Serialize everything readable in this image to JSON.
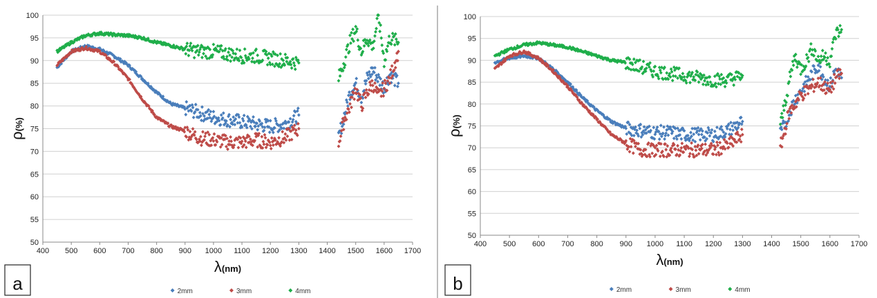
{
  "figure": {
    "colors": {
      "2mm": "#4a7ebb",
      "3mm": "#be4b48",
      "4mm": "#1fae4a"
    }
  },
  "chart_data": [
    {
      "type": "scatter",
      "panel_label": "a",
      "title": "",
      "xlabel": "λ(nm)",
      "ylabel": "ρ(%)",
      "xlim": [
        400,
        1700
      ],
      "ylim": [
        50,
        100
      ],
      "xticks": [
        400,
        500,
        600,
        700,
        800,
        900,
        1000,
        1100,
        1200,
        1300,
        1400,
        1500,
        1600,
        1700
      ],
      "yticks": [
        50,
        55,
        60,
        65,
        70,
        75,
        80,
        85,
        90,
        95,
        100
      ],
      "grid": true,
      "legend": "bottom",
      "series": [
        {
          "name": "2mm",
          "color": "#4a7ebb",
          "segments": [
            {
              "x": [
                450,
                500,
                550,
                600,
                650,
                700,
                750,
                800,
                850,
                900,
                950,
                1000,
                1050,
                1100,
                1150,
                1200,
                1250,
                1300
              ],
              "y": [
                88.5,
                92,
                93.2,
                92.5,
                91,
                89,
                86,
                83,
                80.5,
                79.5,
                78.5,
                77.5,
                77,
                76.5,
                76,
                75.5,
                76,
                78
              ]
            },
            {
              "x": [
                1440,
                1460,
                1480,
                1500,
                1520,
                1540,
                1560,
                1580,
                1600,
                1620,
                1650
              ],
              "y": [
                73,
                78,
                83,
                85,
                82,
                86,
                88,
                86,
                84,
                87,
                85
              ]
            }
          ]
        },
        {
          "name": "3mm",
          "color": "#be4b48",
          "segments": [
            {
              "x": [
                450,
                500,
                550,
                600,
                650,
                700,
                750,
                800,
                850,
                900,
                950,
                1000,
                1050,
                1100,
                1150,
                1200,
                1250,
                1300
              ],
              "y": [
                89,
                92,
                92.8,
                92,
                89.5,
                86,
                81.5,
                77.5,
                75.5,
                74.5,
                73,
                72.5,
                72,
                72,
                72.5,
                72,
                73,
                75
              ]
            },
            {
              "x": [
                1440,
                1460,
                1480,
                1500,
                1520,
                1540,
                1560,
                1580,
                1600,
                1620,
                1650
              ],
              "y": [
                72,
                77,
                80,
                84,
                80,
                83,
                85,
                82,
                84,
                86,
                92
              ]
            }
          ]
        },
        {
          "name": "4mm",
          "color": "#1fae4a",
          "segments": [
            {
              "x": [
                450,
                500,
                550,
                600,
                650,
                700,
                750,
                800,
                850,
                900,
                950,
                1000,
                1050,
                1100,
                1150,
                1200,
                1250,
                1300
              ],
              "y": [
                92,
                94,
                95.5,
                96,
                95.7,
                95.5,
                95,
                94,
                93.3,
                92.5,
                92,
                92,
                91.5,
                91,
                91,
                90.5,
                90,
                89.5
              ]
            },
            {
              "x": [
                1440,
                1460,
                1480,
                1500,
                1520,
                1540,
                1560,
                1580,
                1600,
                1620,
                1650
              ],
              "y": [
                86,
                90,
                94,
                97,
                92,
                95,
                93,
                100,
                90,
                95,
                94
              ]
            }
          ]
        }
      ]
    },
    {
      "type": "scatter",
      "panel_label": "b",
      "title": "",
      "xlabel": "λ(nm)",
      "ylabel": "ρ(%)",
      "xlim": [
        400,
        1700
      ],
      "ylim": [
        50,
        100
      ],
      "xticks": [
        400,
        500,
        600,
        700,
        800,
        900,
        1000,
        1100,
        1200,
        1300,
        1400,
        1500,
        1600,
        1700
      ],
      "yticks": [
        50,
        55,
        60,
        65,
        70,
        75,
        80,
        85,
        90,
        95,
        100
      ],
      "grid": true,
      "legend": "bottom",
      "series": [
        {
          "name": "2mm",
          "color": "#4a7ebb",
          "segments": [
            {
              "x": [
                450,
                500,
                550,
                600,
                650,
                700,
                750,
                800,
                850,
                900,
                950,
                1000,
                1050,
                1100,
                1150,
                1200,
                1250,
                1300
              ],
              "y": [
                89.5,
                90.5,
                91,
                90.5,
                88,
                85,
                81.5,
                78.5,
                76,
                74.5,
                74,
                73.5,
                73.5,
                73,
                73,
                73,
                74,
                76
              ]
            },
            {
              "x": [
                1430,
                1460,
                1480,
                1500,
                1520,
                1540,
                1560,
                1580,
                1600,
                1620,
                1640
              ],
              "y": [
                73,
                78,
                81,
                83,
                85,
                87,
                89,
                86,
                84,
                88,
                86
              ]
            }
          ]
        },
        {
          "name": "3mm",
          "color": "#be4b48",
          "segments": [
            {
              "x": [
                450,
                500,
                550,
                600,
                650,
                700,
                750,
                800,
                850,
                900,
                950,
                1000,
                1050,
                1100,
                1150,
                1200,
                1250,
                1300
              ],
              "y": [
                88,
                91,
                92,
                90.5,
                87.5,
                84,
                80,
                76.5,
                73,
                71,
                69.5,
                69.5,
                69.5,
                69.5,
                69.5,
                69.5,
                70.5,
                73
              ]
            },
            {
              "x": [
                1430,
                1460,
                1480,
                1500,
                1520,
                1540,
                1560,
                1580,
                1600,
                1620,
                1640
              ],
              "y": [
                70,
                78,
                80,
                82,
                83,
                84,
                85,
                84,
                83,
                86,
                87
              ]
            }
          ]
        },
        {
          "name": "4mm",
          "color": "#1fae4a",
          "segments": [
            {
              "x": [
                450,
                500,
                550,
                600,
                650,
                700,
                750,
                800,
                850,
                900,
                950,
                1000,
                1050,
                1100,
                1150,
                1200,
                1250,
                1300
              ],
              "y": [
                91,
                92.5,
                93.5,
                94,
                93.5,
                93,
                92,
                91,
                90,
                89.5,
                88.5,
                87.5,
                87,
                86.5,
                86,
                85.5,
                85.5,
                86.5
              ]
            },
            {
              "x": [
                1430,
                1460,
                1480,
                1500,
                1520,
                1540,
                1560,
                1580,
                1600,
                1620,
                1640
              ],
              "y": [
                75,
                85,
                91,
                88,
                90,
                93,
                90,
                91,
                90,
                96,
                97
              ]
            }
          ]
        }
      ]
    }
  ]
}
